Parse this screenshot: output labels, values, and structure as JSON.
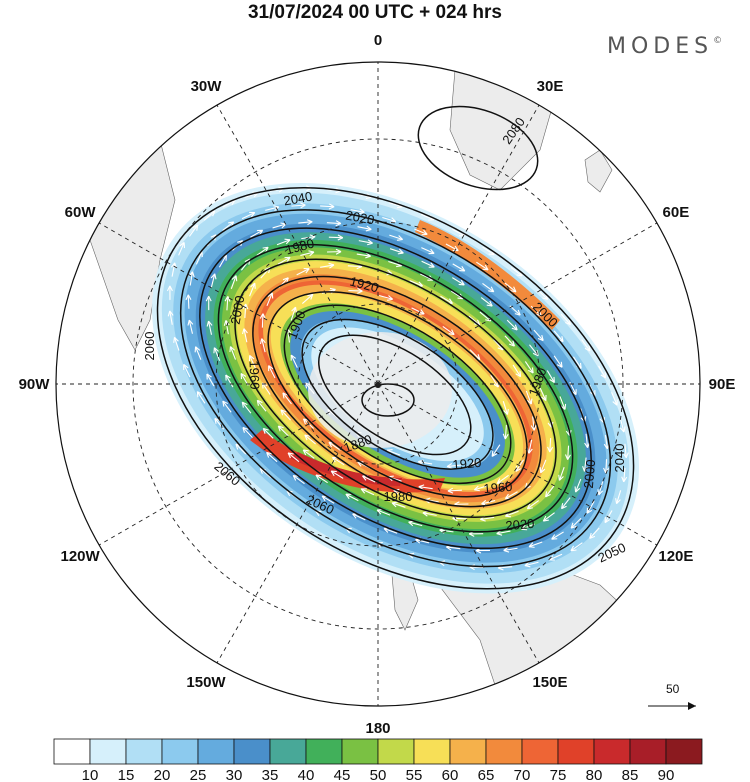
{
  "header": {
    "title": "31/07/2024  00 UTC  + 024 hrs",
    "brand": "MODES",
    "brand_mark": "©"
  },
  "map": {
    "projection": "polar-stereographic-south",
    "longitude_labels": [
      {
        "text": "0",
        "lon": 0
      },
      {
        "text": "30E",
        "lon": 30
      },
      {
        "text": "60E",
        "lon": 60
      },
      {
        "text": "90E",
        "lon": 90
      },
      {
        "text": "120E",
        "lon": 120
      },
      {
        "text": "150E",
        "lon": 150
      },
      {
        "text": "180",
        "lon": 180
      },
      {
        "text": "150W",
        "lon": -150
      },
      {
        "text": "120W",
        "lon": -120
      },
      {
        "text": "90W",
        "lon": -90
      },
      {
        "text": "60W",
        "lon": -60
      },
      {
        "text": "30W",
        "lon": -30
      }
    ],
    "contour_labels": [
      "2080",
      "2040",
      "2020",
      "1980",
      "1920",
      "1900",
      "2000",
      "2060",
      "1960",
      "1880",
      "1980",
      "1920",
      "1960",
      "2000",
      "2040",
      "2060",
      "2020",
      "2060",
      "1980",
      "2000",
      "2050"
    ],
    "colors": {
      "land": "#ececec",
      "background": "#ffffff"
    },
    "reference_vector": {
      "value": "50"
    }
  },
  "colorbar": {
    "labels": [
      "10",
      "15",
      "20",
      "25",
      "30",
      "35",
      "40",
      "45",
      "50",
      "55",
      "60",
      "65",
      "70",
      "75",
      "80",
      "85",
      "90"
    ],
    "colors": [
      "#ffffff",
      "#d6f0fb",
      "#b1dff5",
      "#8ccaee",
      "#64abde",
      "#4a8fca",
      "#48a898",
      "#41b05a",
      "#7ac143",
      "#c2d94a",
      "#f7df57",
      "#f5b14b",
      "#f28a3c",
      "#ee6535",
      "#e04129",
      "#c92a2c",
      "#a81e28",
      "#8b1a1f"
    ]
  }
}
